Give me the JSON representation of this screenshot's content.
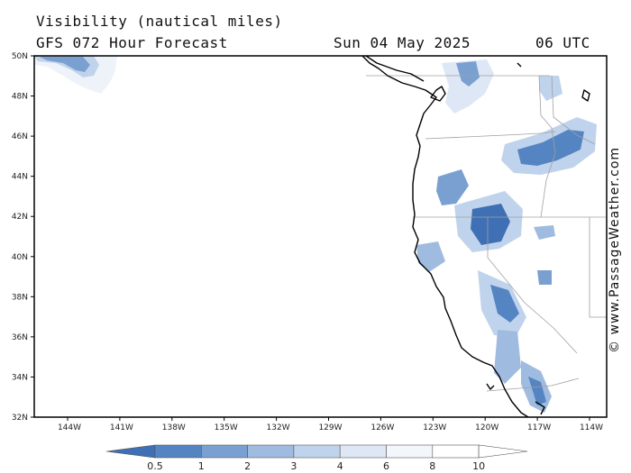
{
  "header": {
    "line1": "Visibility (nautical miles)",
    "line2": "GFS 072 Hour Forecast",
    "date": "Sun 04 May 2025",
    "time": "06 UTC"
  },
  "credit": "© www.PassageWeather.com",
  "map": {
    "lat_ticks": [
      "50N",
      "48N",
      "46N",
      "44N",
      "42N",
      "40N",
      "38N",
      "36N",
      "34N",
      "32N"
    ],
    "lon_ticks": [
      "144W",
      "141W",
      "138W",
      "135W",
      "132W",
      "129W",
      "126W",
      "123W",
      "120W",
      "117W",
      "114W"
    ],
    "lat_range": [
      32,
      50
    ],
    "lon_range": [
      -146,
      -113
    ],
    "land_color": "#ffffff",
    "sea_color": "#ffffff",
    "coast_color": "#000000"
  },
  "legend": {
    "labels": [
      "0.5",
      "1",
      "2",
      "3",
      "4",
      "6",
      "8",
      "10"
    ],
    "colors": [
      "#3f6fb5",
      "#5484c2",
      "#7aa0d1",
      "#9fbbdf",
      "#c0d3ec",
      "#dde7f5",
      "#f3f6fb",
      "#ffffff"
    ],
    "units": "nautical miles"
  }
}
